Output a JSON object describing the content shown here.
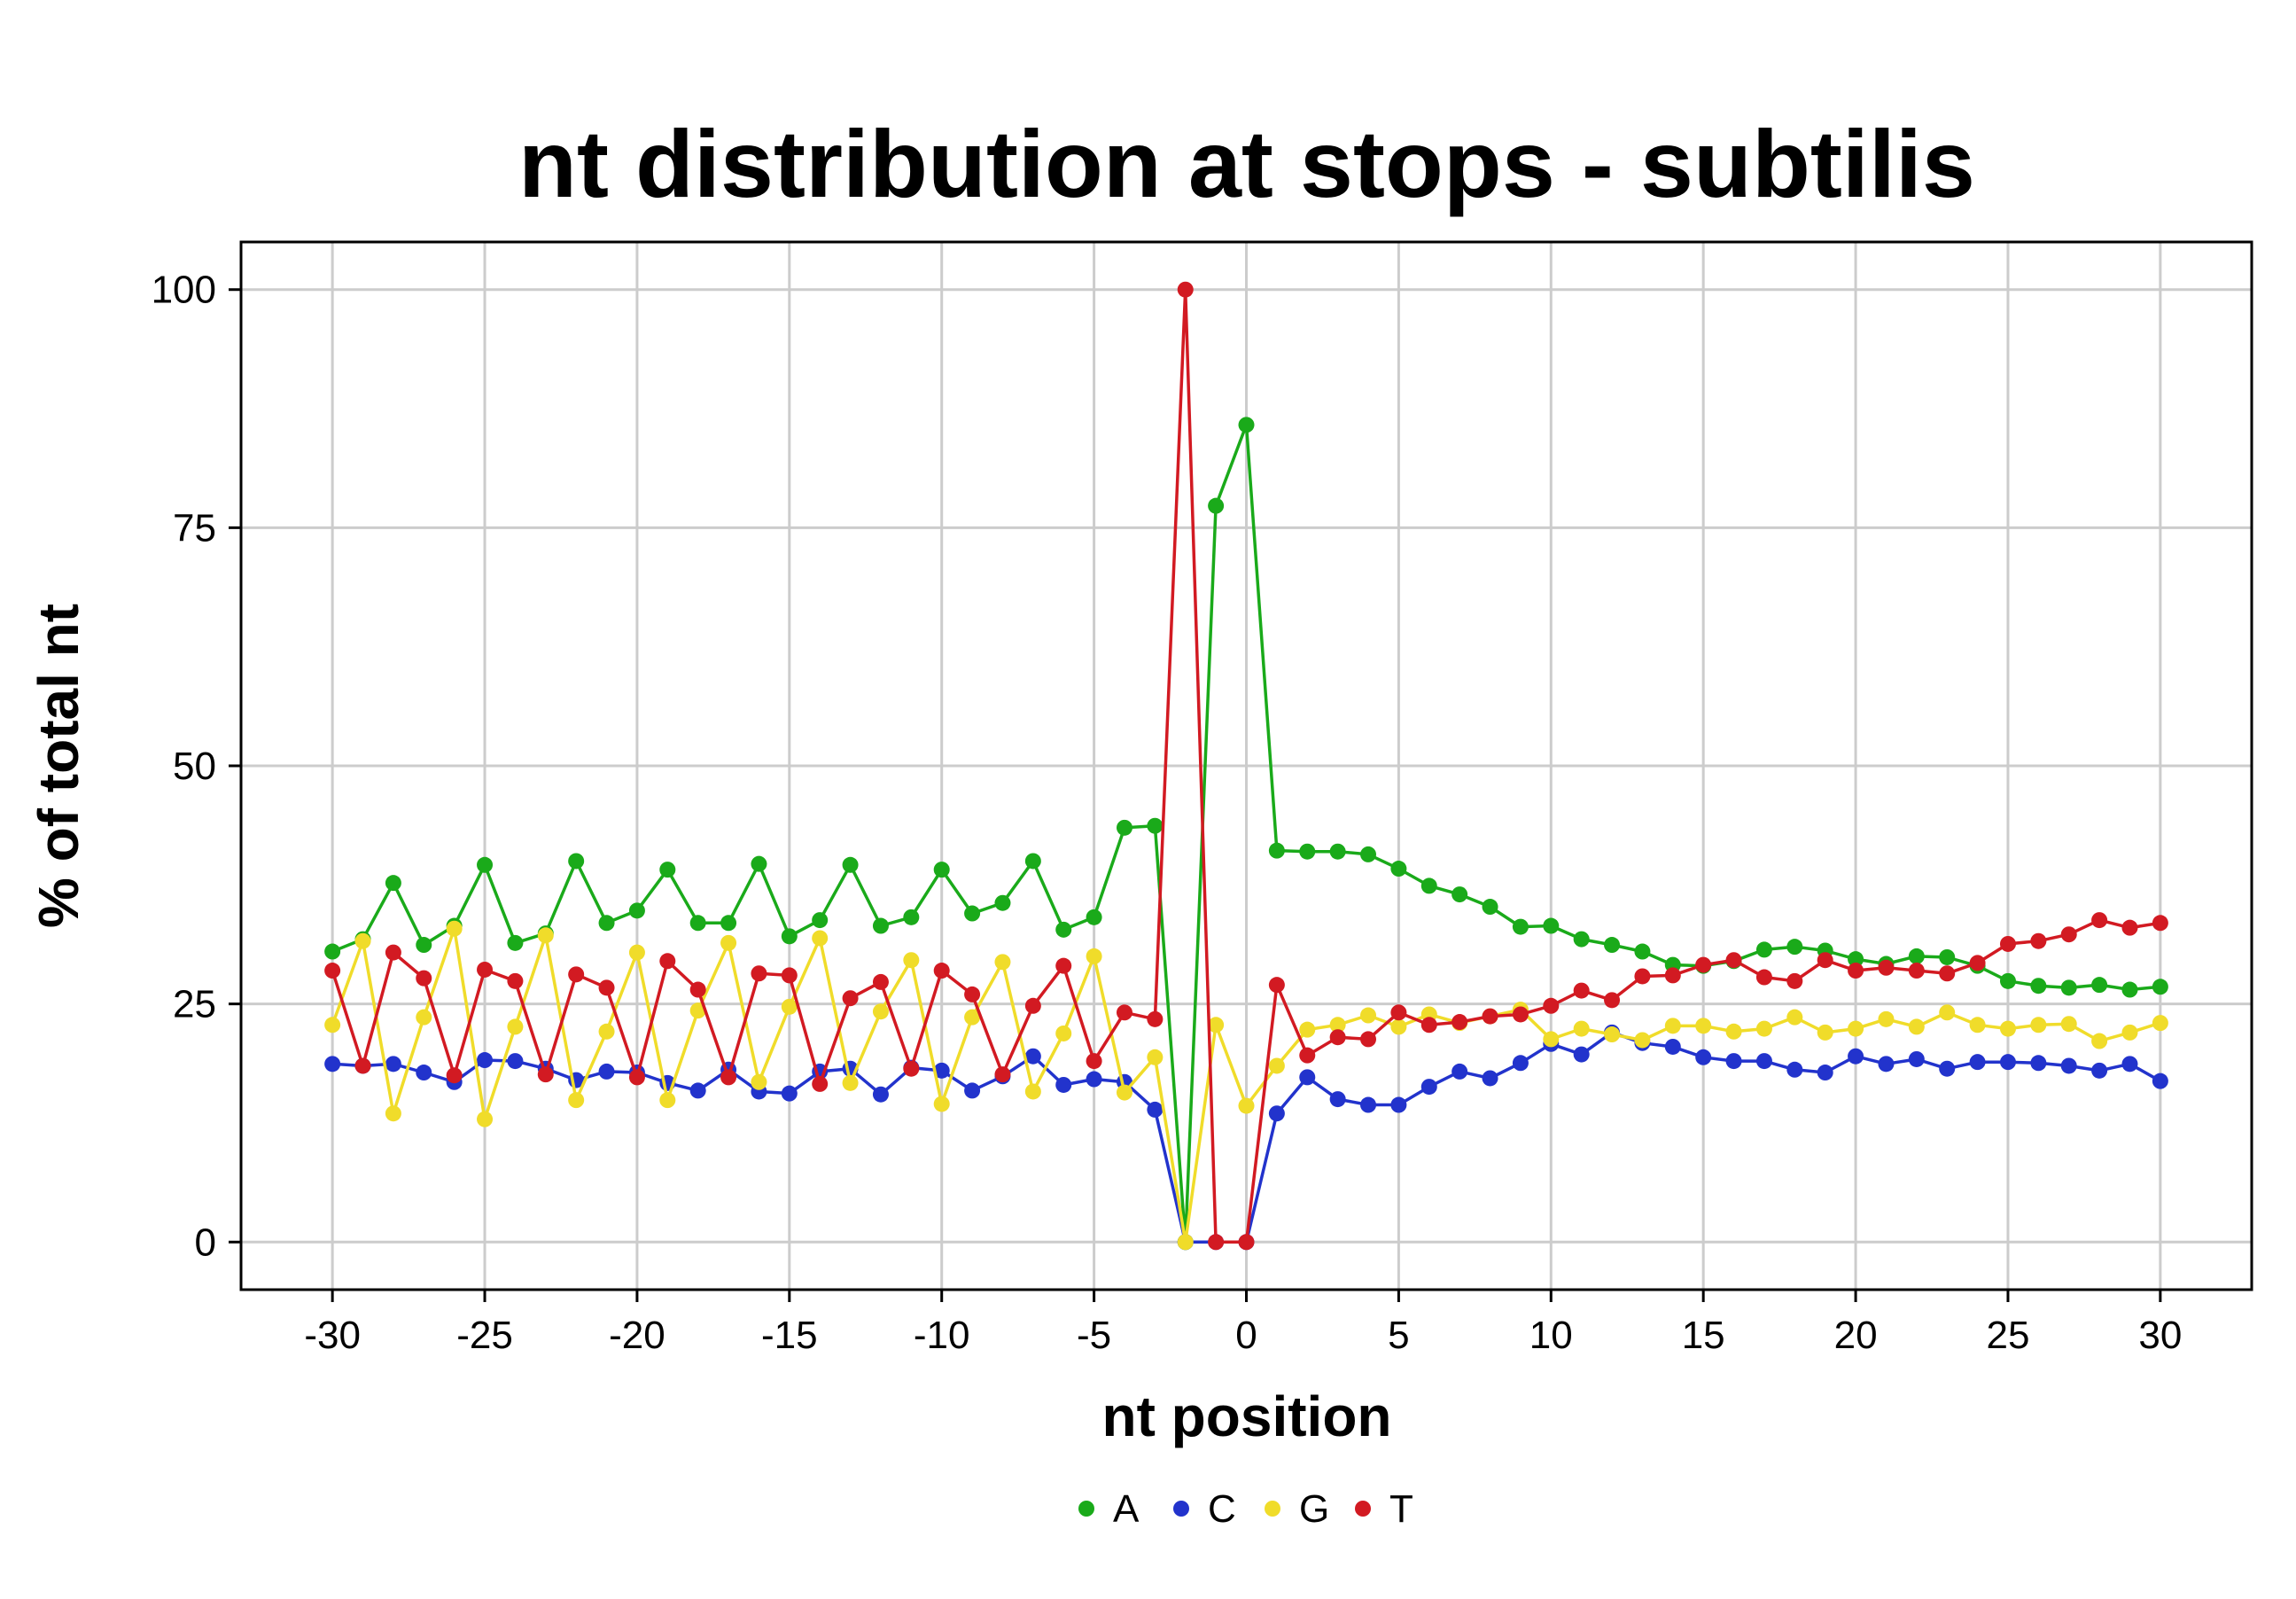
{
  "chart_data": {
    "type": "line",
    "title": "nt distribution at stops - subtilis",
    "xlabel": "nt position",
    "ylabel": "% of total nt",
    "xlim": [
      -33,
      33
    ],
    "ylim": [
      -5,
      105
    ],
    "xticks": [
      -30,
      -25,
      -20,
      -15,
      -10,
      -5,
      0,
      5,
      10,
      15,
      20,
      25,
      30
    ],
    "xtick_labels": [
      "-30",
      "-25",
      "-20",
      "-15",
      "-10",
      "-5",
      "0",
      "5",
      "10",
      "15",
      "20",
      "25",
      "30"
    ],
    "yticks": [
      0,
      25,
      50,
      75,
      100
    ],
    "ytick_labels": [
      "0",
      "25",
      "50",
      "75",
      "100"
    ],
    "grid": true,
    "legend_position": "bottom",
    "x": [
      -30,
      -29,
      -28,
      -27,
      -26,
      -25,
      -24,
      -23,
      -22,
      -21,
      -20,
      -19,
      -18,
      -17,
      -16,
      -15,
      -14,
      -13,
      -12,
      -11,
      -10,
      -9,
      -8,
      -7,
      -6,
      -5,
      -4,
      -3,
      -2,
      -1,
      0,
      1,
      2,
      3,
      4,
      5,
      6,
      7,
      8,
      9,
      10,
      11,
      12,
      13,
      14,
      15,
      16,
      17,
      18,
      19,
      20,
      21,
      22,
      23,
      24,
      25,
      26,
      27,
      28,
      29,
      30
    ],
    "series": [
      {
        "name": "A",
        "color": "#1aaa1a",
        "values": [
          30.5,
          31.8,
          37.7,
          31.2,
          33.2,
          39.6,
          31.4,
          32.4,
          40.0,
          33.5,
          34.8,
          39.1,
          33.5,
          33.5,
          39.7,
          32.1,
          33.8,
          39.6,
          33.2,
          34.1,
          39.1,
          34.5,
          35.6,
          40.0,
          32.8,
          34.1,
          43.5,
          43.7,
          0.0,
          77.3,
          85.8,
          41.1,
          41.0,
          41.0,
          40.7,
          39.2,
          37.4,
          36.5,
          35.2,
          33.1,
          33.2,
          31.8,
          31.2,
          30.5,
          29.1,
          29.0,
          29.5,
          30.7,
          31.0,
          30.6,
          29.7,
          29.2,
          30.0,
          29.9,
          29.0,
          27.4,
          26.9,
          26.7,
          27.0,
          26.5,
          26.8
        ]
      },
      {
        "name": "C",
        "color": "#2233cc",
        "values": [
          18.7,
          18.5,
          18.7,
          17.8,
          16.8,
          19.1,
          19.0,
          18.2,
          17.0,
          17.9,
          17.8,
          16.7,
          15.9,
          18.1,
          15.8,
          15.6,
          17.9,
          18.2,
          15.5,
          18.3,
          18.0,
          15.9,
          17.4,
          19.5,
          16.5,
          17.1,
          16.8,
          13.9,
          0.0,
          0.0,
          0.0,
          13.5,
          17.3,
          15.0,
          14.4,
          14.4,
          16.3,
          17.9,
          17.2,
          18.8,
          20.8,
          19.7,
          22.0,
          20.9,
          20.5,
          19.4,
          19.0,
          19.0,
          18.1,
          17.8,
          19.5,
          18.7,
          19.2,
          18.2,
          18.9,
          18.9,
          18.8,
          18.5,
          18.0,
          18.7,
          16.9
        ]
      },
      {
        "name": "G",
        "color": "#f0dc2a",
        "values": [
          22.8,
          31.6,
          13.5,
          23.6,
          32.9,
          12.9,
          22.6,
          32.2,
          14.9,
          22.1,
          30.4,
          14.9,
          24.3,
          31.4,
          16.8,
          24.7,
          31.9,
          16.7,
          24.2,
          29.6,
          14.5,
          23.6,
          29.4,
          15.8,
          21.9,
          30.0,
          15.7,
          19.4,
          0.0,
          22.8,
          14.3,
          18.5,
          22.3,
          22.8,
          23.8,
          22.6,
          23.9,
          23.0,
          23.7,
          24.4,
          21.3,
          22.4,
          21.8,
          21.2,
          22.7,
          22.7,
          22.1,
          22.4,
          23.6,
          22.0,
          22.4,
          23.4,
          22.6,
          24.1,
          22.8,
          22.4,
          22.8,
          22.9,
          21.1,
          22.0,
          23.0
        ]
      },
      {
        "name": "T",
        "color": "#d21a22",
        "values": [
          28.5,
          18.5,
          30.4,
          27.7,
          17.5,
          28.6,
          27.4,
          17.6,
          28.1,
          26.7,
          17.3,
          29.5,
          26.5,
          17.3,
          28.2,
          28.0,
          16.6,
          25.6,
          27.3,
          18.2,
          28.5,
          26.0,
          17.6,
          24.8,
          29.0,
          19.0,
          24.1,
          23.4,
          100.0,
          0.0,
          0.0,
          27.0,
          19.6,
          21.5,
          21.3,
          24.1,
          22.8,
          23.1,
          23.7,
          23.9,
          24.8,
          26.4,
          25.4,
          27.9,
          28.0,
          29.1,
          29.6,
          27.8,
          27.4,
          29.6,
          28.5,
          28.8,
          28.5,
          28.2,
          29.3,
          31.3,
          31.6,
          32.3,
          33.8,
          33.0,
          33.5
        ]
      }
    ]
  }
}
